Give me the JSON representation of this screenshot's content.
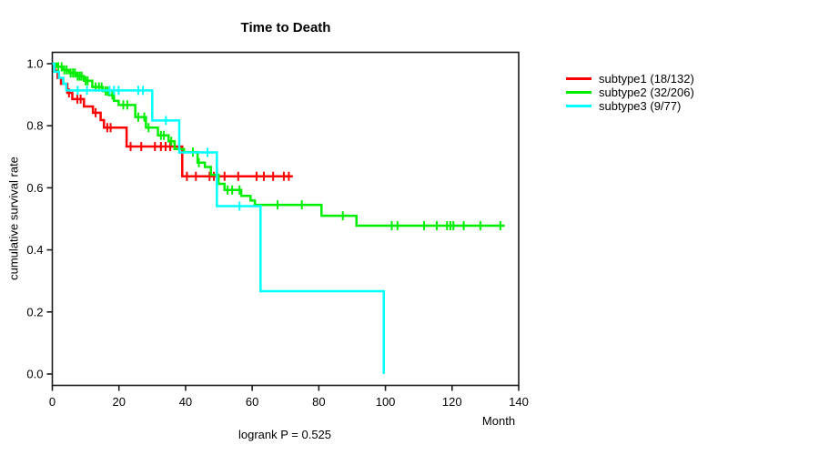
{
  "chart_data": {
    "type": "line",
    "subtype": "kaplan-meier-step",
    "title": "Time to Death",
    "xlabel": "Month",
    "ylabel": "cumulative survival rate",
    "annotation": "logrank P = 0.525",
    "xlim": [
      0,
      140
    ],
    "ylim": [
      0,
      1
    ],
    "x_ticks": [
      0,
      20,
      40,
      60,
      80,
      100,
      120,
      140
    ],
    "y_ticks": [
      "0.0",
      "0.2",
      "0.4",
      "0.6",
      "0.8",
      "1.0"
    ],
    "grid": false,
    "legend_position": "right-outside",
    "series": [
      {
        "name": "subtype1 (18/132)",
        "group": "subtype1",
        "events": 18,
        "n": 132,
        "color": "#ff0000",
        "steps": [
          [
            0,
            1
          ],
          [
            0.8,
            0.977
          ],
          [
            1.6,
            0.954
          ],
          [
            2.6,
            0.935
          ],
          [
            4.5,
            0.906
          ],
          [
            6,
            0.886
          ],
          [
            9.5,
            0.862
          ],
          [
            12.2,
            0.842
          ],
          [
            14.5,
            0.818
          ],
          [
            15.5,
            0.794
          ],
          [
            22.3,
            0.733
          ],
          [
            39,
            0.637
          ]
        ],
        "end_month": 72.2,
        "censor_months": [
          5,
          7.5,
          8.5,
          13,
          16.5,
          17.5,
          23.5,
          26.7,
          30.8,
          32.6,
          34,
          35.4,
          40.4,
          43.1,
          47.2,
          48.5,
          49.5,
          51.7,
          55.8,
          61.3,
          63.5,
          66.3,
          69.5,
          71
        ]
      },
      {
        "name": "subtype2 (32/206)",
        "group": "subtype2",
        "events": 32,
        "n": 206,
        "color": "#00ee00",
        "steps": [
          [
            0,
            1
          ],
          [
            1.3,
            0.99
          ],
          [
            3,
            0.98
          ],
          [
            5,
            0.97
          ],
          [
            7.2,
            0.96
          ],
          [
            9.5,
            0.945
          ],
          [
            12,
            0.925
          ],
          [
            15.2,
            0.912
          ],
          [
            17,
            0.899
          ],
          [
            18.5,
            0.88
          ],
          [
            19.9,
            0.867
          ],
          [
            24.9,
            0.828
          ],
          [
            28.1,
            0.794
          ],
          [
            31.7,
            0.769
          ],
          [
            34.9,
            0.75
          ],
          [
            36.7,
            0.725
          ],
          [
            39.5,
            0.715
          ],
          [
            43.6,
            0.681
          ],
          [
            45.8,
            0.667
          ],
          [
            47.6,
            0.642
          ],
          [
            49.9,
            0.613
          ],
          [
            51.7,
            0.593
          ],
          [
            56.7,
            0.574
          ],
          [
            59.5,
            0.559
          ],
          [
            60.8,
            0.545
          ],
          [
            80.8,
            0.51
          ],
          [
            91.3,
            0.478
          ]
        ],
        "end_month": 135.8,
        "censor_months": [
          1.8,
          2.8,
          3.6,
          4.3,
          5.5,
          6.2,
          6.8,
          7.6,
          8.2,
          8.8,
          10,
          10.6,
          13,
          14,
          14.8,
          16,
          16.6,
          18,
          21.3,
          22.5,
          25.8,
          27.6,
          28.9,
          32.6,
          33.5,
          35.7,
          42.2,
          44,
          52.6,
          54,
          56.2,
          67.6,
          74.9,
          87.2,
          101.9,
          103.6,
          111.6,
          115.4,
          118.5,
          119.5,
          120.4,
          123.5,
          128.5,
          134.5
        ]
      },
      {
        "name": "subtype3 (9/77)",
        "group": "subtype3",
        "events": 9,
        "n": 77,
        "color": "#00ffff",
        "steps": [
          [
            0,
            1
          ],
          [
            0.6,
            0.974
          ],
          [
            2,
            0.954
          ],
          [
            3.3,
            0.935
          ],
          [
            4.2,
            0.914
          ],
          [
            30,
            0.817
          ],
          [
            38.1,
            0.714
          ],
          [
            49.4,
            0.541
          ],
          [
            62.5,
            0.267
          ],
          [
            99.5,
            0
          ]
        ],
        "end_month": 99.5,
        "censor_months": [
          7.6,
          10.4,
          17.2,
          18.5,
          19.9,
          25.8,
          27.2,
          34.1,
          46.6,
          56.2
        ]
      }
    ]
  }
}
